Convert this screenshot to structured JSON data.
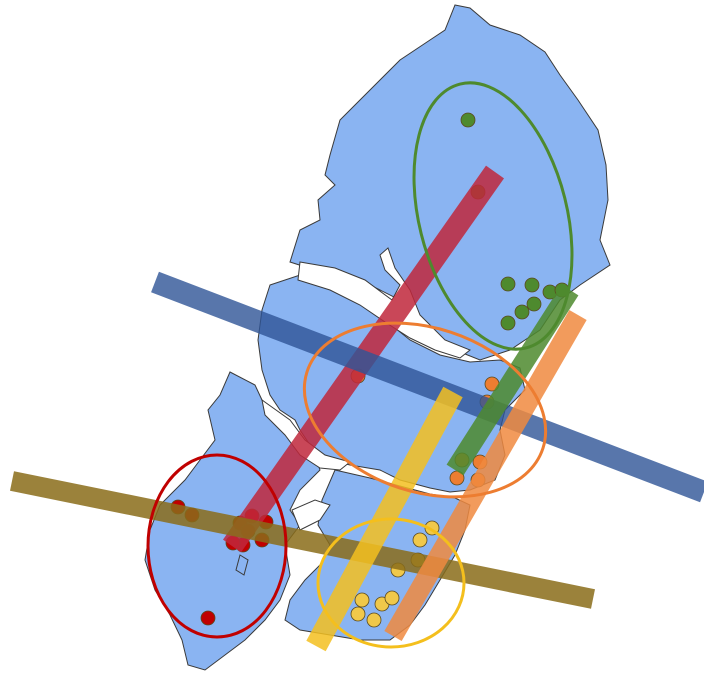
{
  "map": {
    "land_color": "#8ab4f2",
    "land_stroke": "#3a3a3a",
    "background_color": "#ffffff",
    "clusters": [
      {
        "id": "green",
        "color": "#4e8a2e",
        "point_fill": "#4e8a2e",
        "points": 9
      },
      {
        "id": "orange",
        "color": "#ed7d31",
        "point_fill": "#ed7d31",
        "points": 7
      },
      {
        "id": "yellow",
        "color": "#f4bf1d",
        "point_fill": "#f0c84a",
        "points": 9
      },
      {
        "id": "red",
        "color": "#c00000",
        "point_fill": "#c00000",
        "points": 10
      }
    ],
    "bands": [
      {
        "id": "red-band",
        "color": "#c0283c"
      },
      {
        "id": "blue-band",
        "color": "#2f5597"
      },
      {
        "id": "olive-band",
        "color": "#8a6d1a"
      },
      {
        "id": "yellow-band",
        "color": "#f4c020"
      },
      {
        "id": "orange-band",
        "color": "#f08a40"
      },
      {
        "id": "green-band",
        "color": "#4e8a2e"
      }
    ]
  }
}
